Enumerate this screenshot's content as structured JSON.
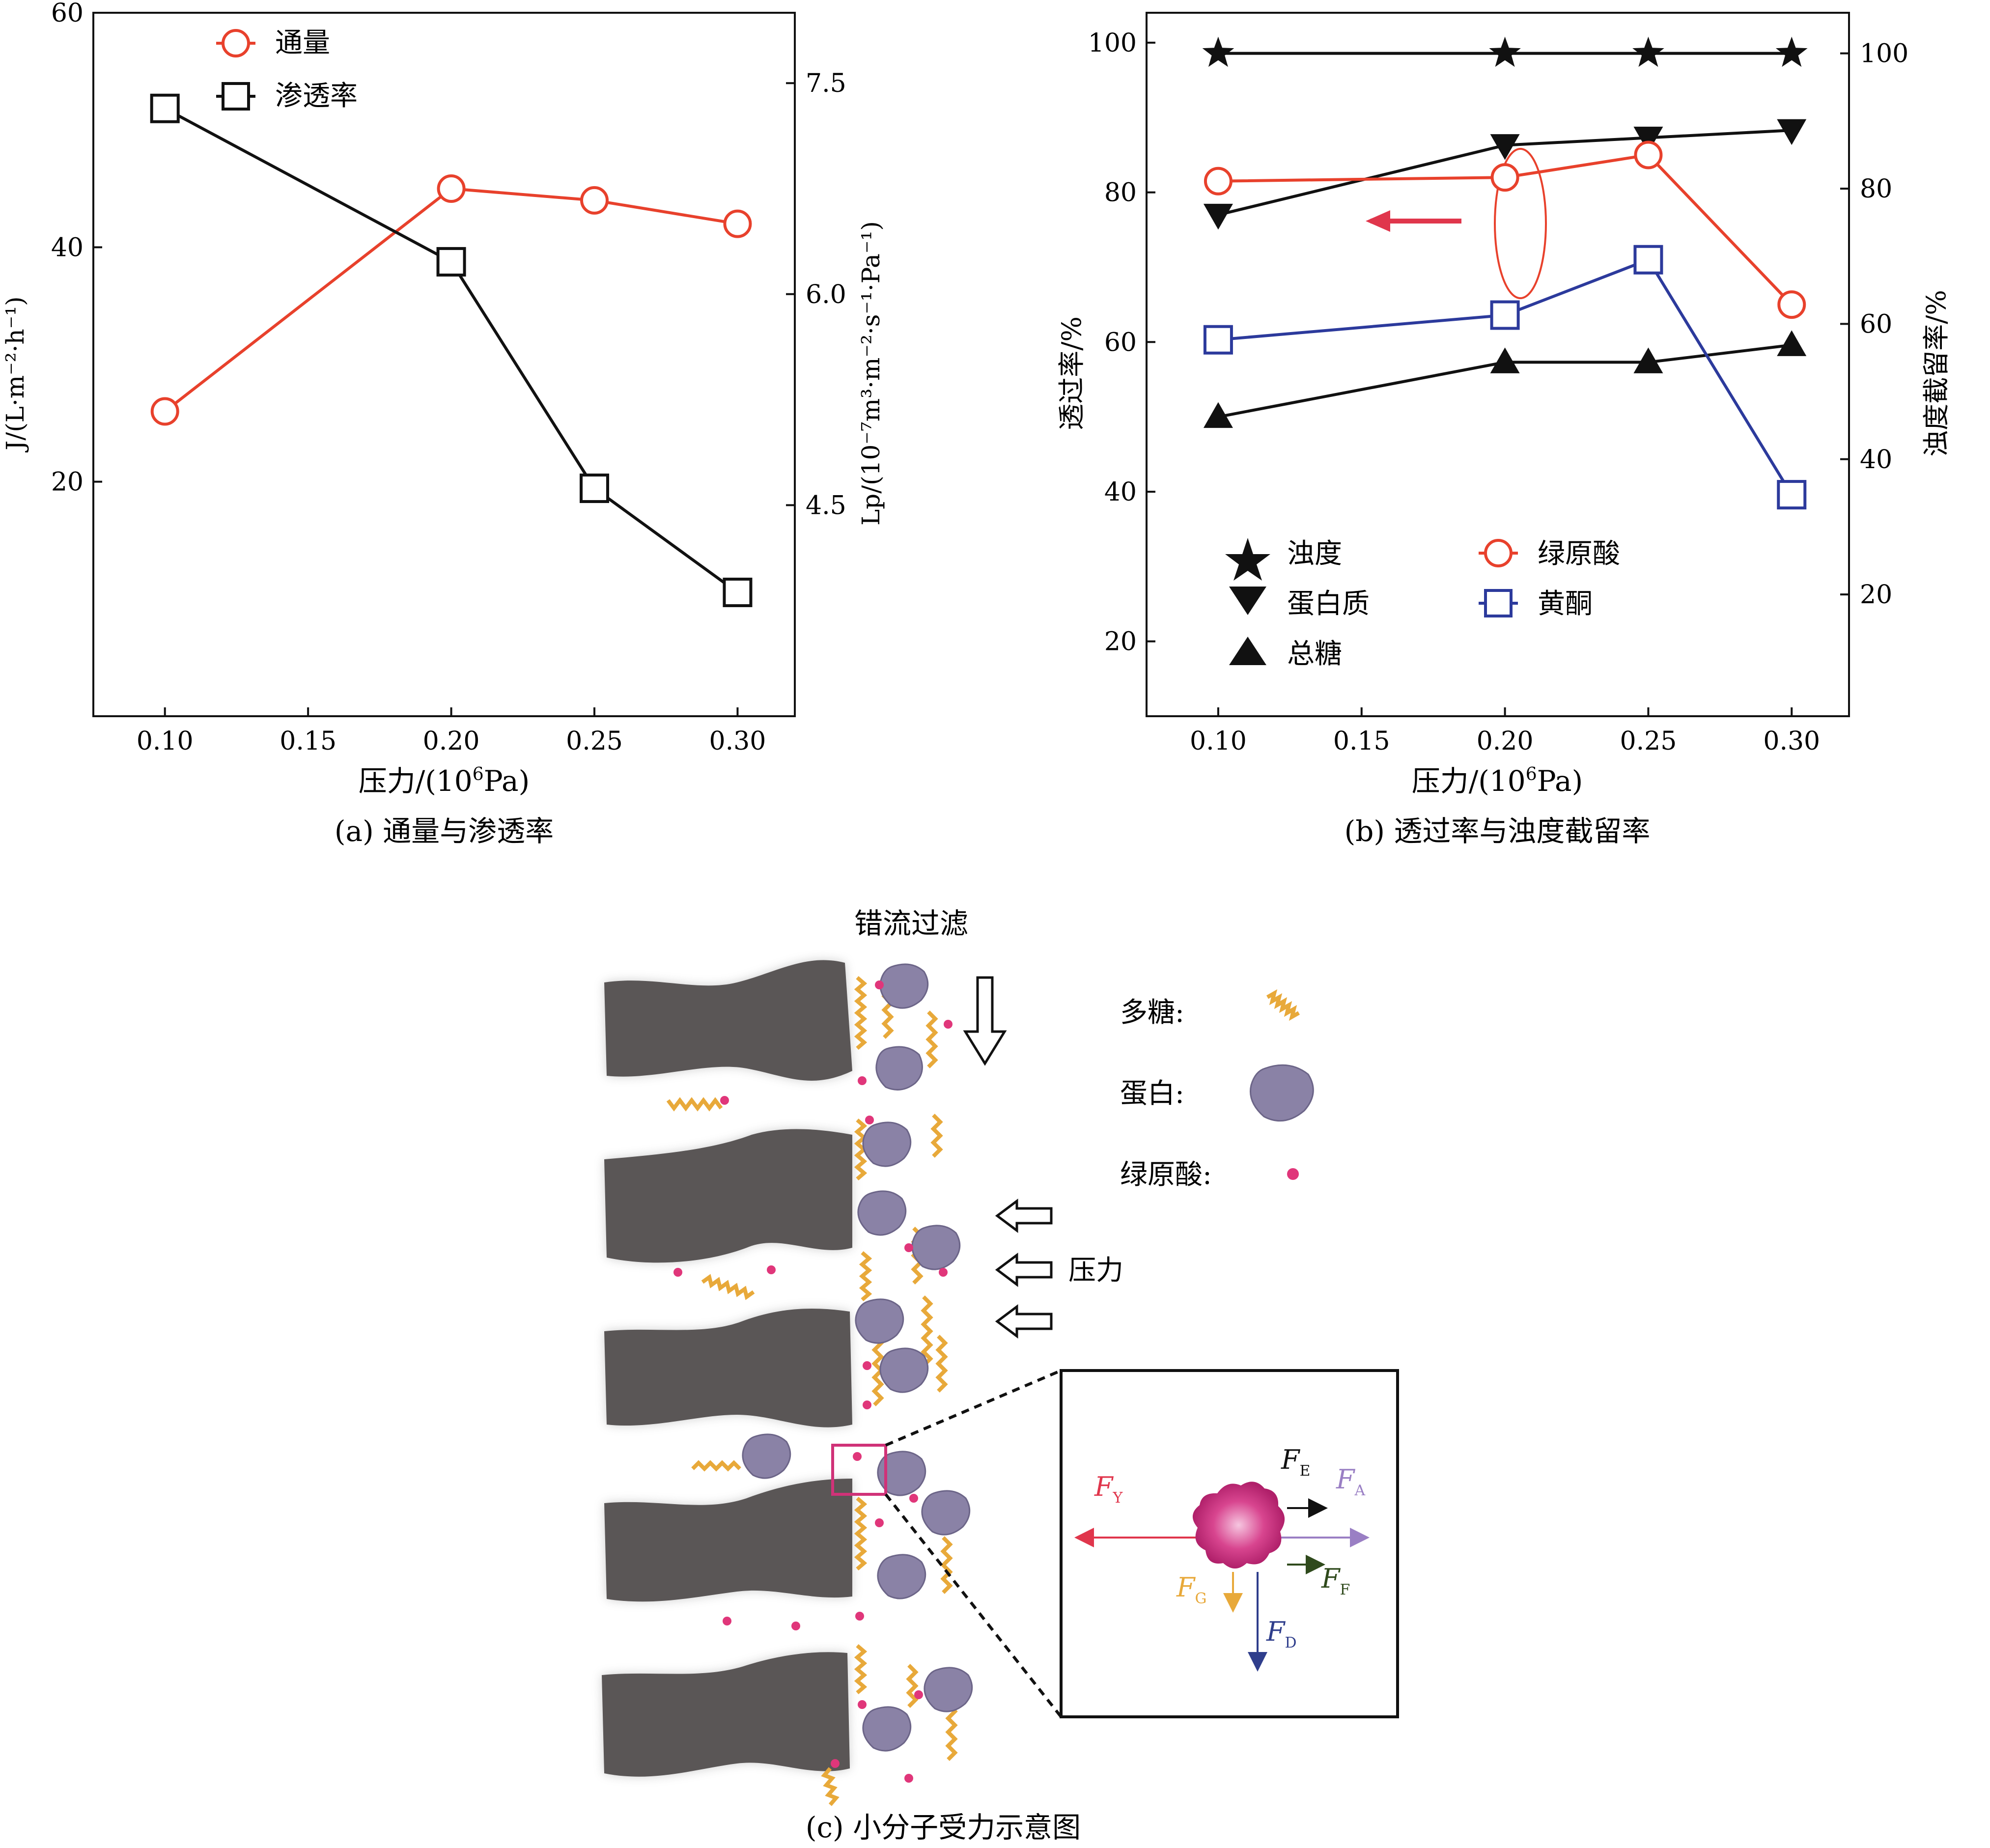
{
  "chart_data": [
    {
      "id": "a",
      "type": "line",
      "caption": "(a) 通量与渗透率",
      "xlabel_prefix": "压力/(10",
      "xlabel_sup": "6",
      "xlabel_suffix": "Pa)",
      "x": [
        0.1,
        0.2,
        0.25,
        0.3
      ],
      "xlim": [
        0.075,
        0.32
      ],
      "xticks": [
        0.1,
        0.15,
        0.2,
        0.25,
        0.3
      ],
      "xtick_labels": [
        "0.10",
        "0.15",
        "0.20",
        "0.25",
        "0.30"
      ],
      "ylabel_left": "J/(L·m⁻²·h⁻¹)",
      "ylim_left": [
        0,
        60
      ],
      "yticks_left": [
        20,
        40,
        60
      ],
      "yticks_left_labels": [
        "20",
        "40",
        "60"
      ],
      "ylabel_right": "Lp/(10⁻⁷m³·m⁻²·s⁻¹·Pa⁻¹)",
      "ylim_right": [
        3.0,
        8.0
      ],
      "yticks_right": [
        4.5,
        6.0,
        7.5
      ],
      "yticks_right_labels": [
        "4.5",
        "6.0",
        "7.5"
      ],
      "series": [
        {
          "name": "通量",
          "axis": "left",
          "marker": "circle",
          "color": "#e8412c",
          "values": [
            26,
            45,
            44,
            42
          ]
        },
        {
          "name": "渗透率",
          "axis": "right",
          "marker": "square",
          "color": "#111111",
          "values": [
            7.32,
            6.23,
            4.62,
            3.88
          ]
        }
      ],
      "legend": "top-left"
    },
    {
      "id": "b",
      "type": "line",
      "caption": "(b) 透过率与浊度截留率",
      "xlabel_prefix": "压力/(10",
      "xlabel_sup": "6",
      "xlabel_suffix": "Pa)",
      "x": [
        0.1,
        0.2,
        0.25,
        0.3
      ],
      "xlim": [
        0.075,
        0.32
      ],
      "xticks": [
        0.1,
        0.15,
        0.2,
        0.25,
        0.3
      ],
      "xtick_labels": [
        "0.10",
        "0.15",
        "0.20",
        "0.25",
        "0.30"
      ],
      "ylabel_left": "透过率/%",
      "ylim_left": [
        10,
        104
      ],
      "yticks_left": [
        20,
        40,
        60,
        80,
        100
      ],
      "yticks_left_labels": [
        "20",
        "40",
        "60",
        "80",
        "100"
      ],
      "ylabel_right": "浊度截留率/%",
      "ylim_right": [
        2,
        106
      ],
      "yticks_right": [
        20,
        40,
        60,
        80,
        100
      ],
      "yticks_right_labels": [
        "20",
        "40",
        "60",
        "80",
        "100"
      ],
      "series": [
        {
          "name": "浊度",
          "axis": "right",
          "marker": "star",
          "color": "#111111",
          "values": [
            100,
            100,
            100,
            100
          ]
        },
        {
          "name": "蛋白质",
          "axis": "left",
          "marker": "triangle-down",
          "color": "#111111",
          "values": [
            77,
            86.3,
            87.3,
            88.3
          ]
        },
        {
          "name": "总糖",
          "axis": "left",
          "marker": "triangle-up",
          "color": "#111111",
          "values": [
            50,
            57.3,
            57.3,
            59.6
          ]
        },
        {
          "name": "绿原酸",
          "axis": "left",
          "marker": "circle",
          "color": "#e8412c",
          "values": [
            81.5,
            82,
            85,
            65
          ]
        },
        {
          "name": "黄酮",
          "axis": "left",
          "marker": "square",
          "color": "#2c3a9c",
          "values": [
            60.3,
            63.6,
            71,
            39.6
          ]
        }
      ],
      "legend": "bottom-left",
      "annotations": [
        "ellipse around 0.20 red/blue points",
        "red arrow pointing left"
      ]
    }
  ],
  "diagram": {
    "caption": "(c) 小分子受力示意图",
    "title": "错流过滤",
    "pressure_label": "压力",
    "legend": {
      "polysaccharide": "多糖:",
      "protein": "蛋白:",
      "chlorogenic": "绿原酸:"
    },
    "forces": {
      "FY": {
        "letter": "F",
        "sub": "Y",
        "color": "#e0364c"
      },
      "FE": {
        "letter": "F",
        "sub": "E",
        "color": "#111111"
      },
      "FA": {
        "letter": "F",
        "sub": "A",
        "color": "#9a7fc4"
      },
      "FF": {
        "letter": "F",
        "sub": "F",
        "color": "#2f4a1c"
      },
      "FG": {
        "letter": "F",
        "sub": "G",
        "color": "#e8a93a"
      },
      "FD": {
        "letter": "F",
        "sub": "D",
        "color": "#2f3e8c"
      }
    },
    "colors": {
      "membrane": "#5a5656",
      "protein": "#8a82a6",
      "polysaccharide": "#e8a93a",
      "chlorogenic": "#e0367a"
    }
  }
}
